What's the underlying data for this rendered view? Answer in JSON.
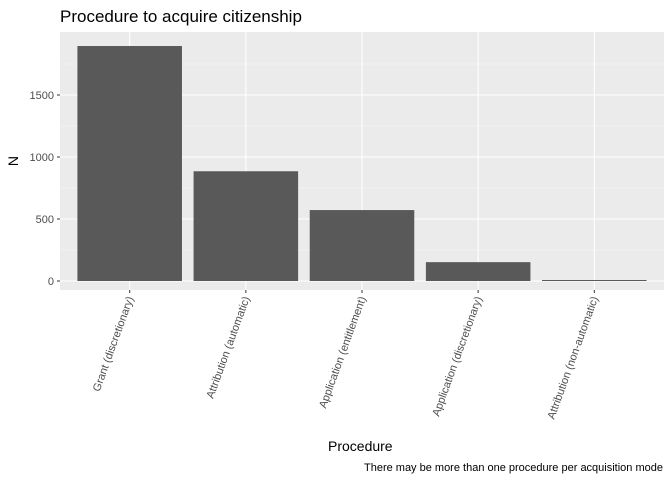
{
  "chart_data": {
    "type": "bar",
    "title": "Procedure to acquire citizenship",
    "xlabel": "Procedure",
    "ylabel": "N",
    "caption": "There may be more than one procedure per acquisition mode",
    "categories": [
      "Grant (discretionary)",
      "Attribution (automatic)",
      "Application (entitlement)",
      "Application (discretionary)",
      "Attribution (non-automatic)"
    ],
    "values": [
      1895,
      885,
      572,
      152,
      8
    ],
    "ylim": [
      0,
      2000
    ],
    "yticks": [
      0,
      500,
      1000,
      1500
    ],
    "grid": true,
    "legend": "none",
    "colors": {
      "bar": "#595959",
      "panel": "#ebebeb",
      "grid_major": "#ffffff",
      "grid_minor": "#f5f5f5"
    }
  }
}
